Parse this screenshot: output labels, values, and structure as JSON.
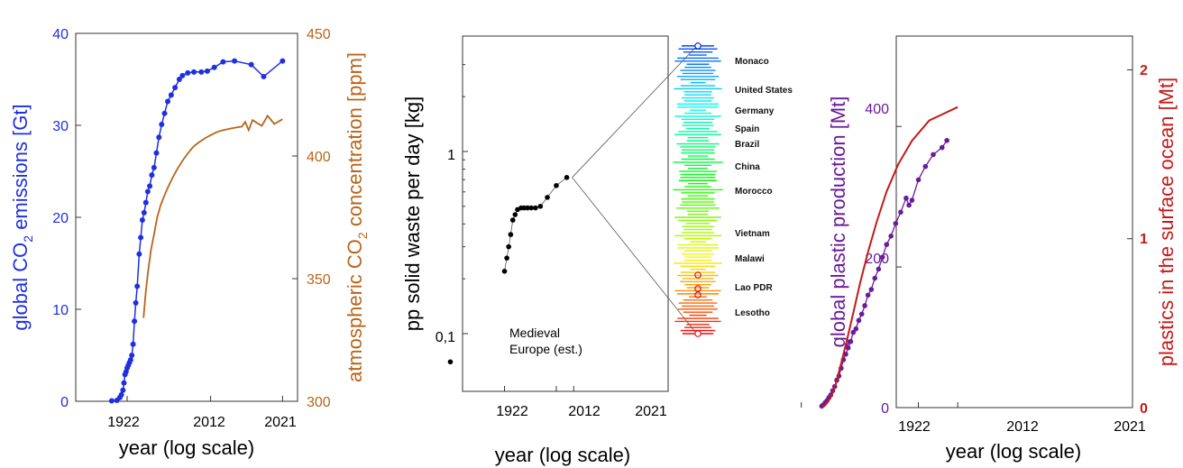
{
  "colors": {
    "co2_emissions": "#1f2fe0",
    "co2_concentration": "#b8651a",
    "plastic_production": "#6a1b9a",
    "plastic_ocean": "#c41a1a",
    "waste_points": "#000000"
  },
  "chart_data": [
    {
      "type": "line",
      "xlabel": "year (log scale)",
      "x_ticks": [
        "1922",
        "2012",
        "2021"
      ],
      "ylabel_left_parts": [
        "global CO",
        "2",
        " emissions [Gt]"
      ],
      "ylabel_right_parts": [
        "atmospheric CO",
        "2",
        " concentration [ppm]"
      ],
      "ylim_left": [
        0,
        40
      ],
      "ylim_right": [
        300,
        450
      ],
      "y_ticks_left": [
        "0",
        "10",
        "20",
        "30",
        "40"
      ],
      "y_ticks_right": [
        "300",
        "350",
        "400",
        "450"
      ],
      "series": [
        {
          "axis": "left",
          "x": [
            1870,
            1890,
            1900,
            1905,
            1910,
            1913,
            1916,
            1919,
            1922,
            1925,
            1928,
            1931,
            1934,
            1937,
            1940,
            1943,
            1946,
            1950,
            1953,
            1956,
            1959,
            1962,
            1965,
            1968,
            1971,
            1974,
            1977,
            1980,
            1983,
            1986,
            1989,
            1992,
            1995,
            1998,
            2000,
            2003,
            2006,
            2009,
            2011,
            2013,
            2015,
            2017,
            2019,
            2020,
            2021
          ],
          "values": [
            0.05,
            0.1,
            0.4,
            0.7,
            1.2,
            2.0,
            2.9,
            3.2,
            3.6,
            3.9,
            4.2,
            4.5,
            5.0,
            6.2,
            8.7,
            10.7,
            12.5,
            16.0,
            17.8,
            19.7,
            20.5,
            21.6,
            22.8,
            23.4,
            24.6,
            25.4,
            27.0,
            28.7,
            30.1,
            31.3,
            32.6,
            33.3,
            34.1,
            35.0,
            35.4,
            35.7,
            35.8,
            35.8,
            35.9,
            36.3,
            36.9,
            37.0,
            36.6,
            35.3,
            37.0
          ]
        },
        {
          "axis": "right",
          "x": [
            1958,
            1962,
            1966,
            1970,
            1974,
            1978,
            1982,
            1986,
            1990,
            1994,
            1998,
            2002,
            2006,
            2010,
            2014,
            2018,
            2021
          ],
          "values": [
            334,
            345,
            354,
            362,
            368,
            375,
            380,
            384,
            388,
            392,
            396,
            400,
            404,
            407,
            410,
            412,
            415
          ]
        }
      ]
    },
    {
      "type": "scatter",
      "xlabel": "year (log scale)",
      "x_ticks": [
        "1922",
        "2012",
        "2021"
      ],
      "ylabel": "pp solid waste per day [kg]",
      "yscale": "log",
      "y_ticks": [
        "0,1",
        "1"
      ],
      "annotation": [
        "Medieval",
        "Europe (est.)"
      ],
      "points": {
        "x": [
          1400,
          1922,
          1930,
          1936,
          1942,
          1948,
          1954,
          1960,
          1968,
          1974,
          1980,
          1986,
          1992,
          1998,
          2005,
          2012,
          2018
        ],
        "values": [
          0.07,
          0.22,
          0.26,
          0.3,
          0.35,
          0.42,
          0.45,
          0.48,
          0.49,
          0.49,
          0.49,
          0.49,
          0.49,
          0.5,
          0.56,
          0.65,
          0.72
        ]
      },
      "countries": [
        "Monaco",
        "United States",
        "Germany",
        "Spain",
        "Brazil",
        "China",
        "Morocco",
        "Vietnam",
        "Malawi",
        "Lao PDR",
        "Lesotho"
      ],
      "country_range": [
        0.1,
        3.8
      ]
    },
    {
      "type": "line",
      "xlabel": "year (log scale)",
      "x_ticks": [
        "1922",
        "2012",
        "2021"
      ],
      "ylabel_left": "global plastic production [Mt]",
      "ylabel_right": "plastics in the surface ocean [Mt]",
      "ylim_left": [
        0,
        500
      ],
      "ylim_right": [
        0,
        2.2
      ],
      "y_ticks_left": [
        "0",
        "200",
        "400"
      ],
      "y_ticks_right": [
        "0",
        "1",
        "2"
      ],
      "series": [
        {
          "axis": "left",
          "x": [
            1950,
            1952,
            1954,
            1956,
            1958,
            1960,
            1962,
            1964,
            1966,
            1968,
            1970,
            1972,
            1974,
            1976,
            1978,
            1980,
            1982,
            1984,
            1986,
            1988,
            1990,
            1992,
            1994,
            1996,
            1998,
            2000,
            2002,
            2004,
            2006,
            2008,
            2009,
            2010,
            2012,
            2014,
            2016,
            2018,
            2019
          ],
          "values": [
            2,
            4,
            7,
            10,
            14,
            18,
            24,
            30,
            39,
            45,
            56,
            68,
            76,
            85,
            94,
            107,
            112,
            124,
            133,
            145,
            160,
            168,
            184,
            197,
            214,
            232,
            244,
            262,
            278,
            298,
            288,
            295,
            324,
            343,
            360,
            370,
            380
          ]
        },
        {
          "axis": "right",
          "x": [
            1950,
            1955,
            1960,
            1965,
            1970,
            1975,
            1980,
            1985,
            1990,
            1995,
            2000,
            2005,
            2010,
            2015,
            2021
          ],
          "values": [
            0,
            0.02,
            0.06,
            0.14,
            0.26,
            0.4,
            0.56,
            0.74,
            0.92,
            1.1,
            1.28,
            1.44,
            1.58,
            1.7,
            1.78
          ]
        }
      ]
    }
  ]
}
